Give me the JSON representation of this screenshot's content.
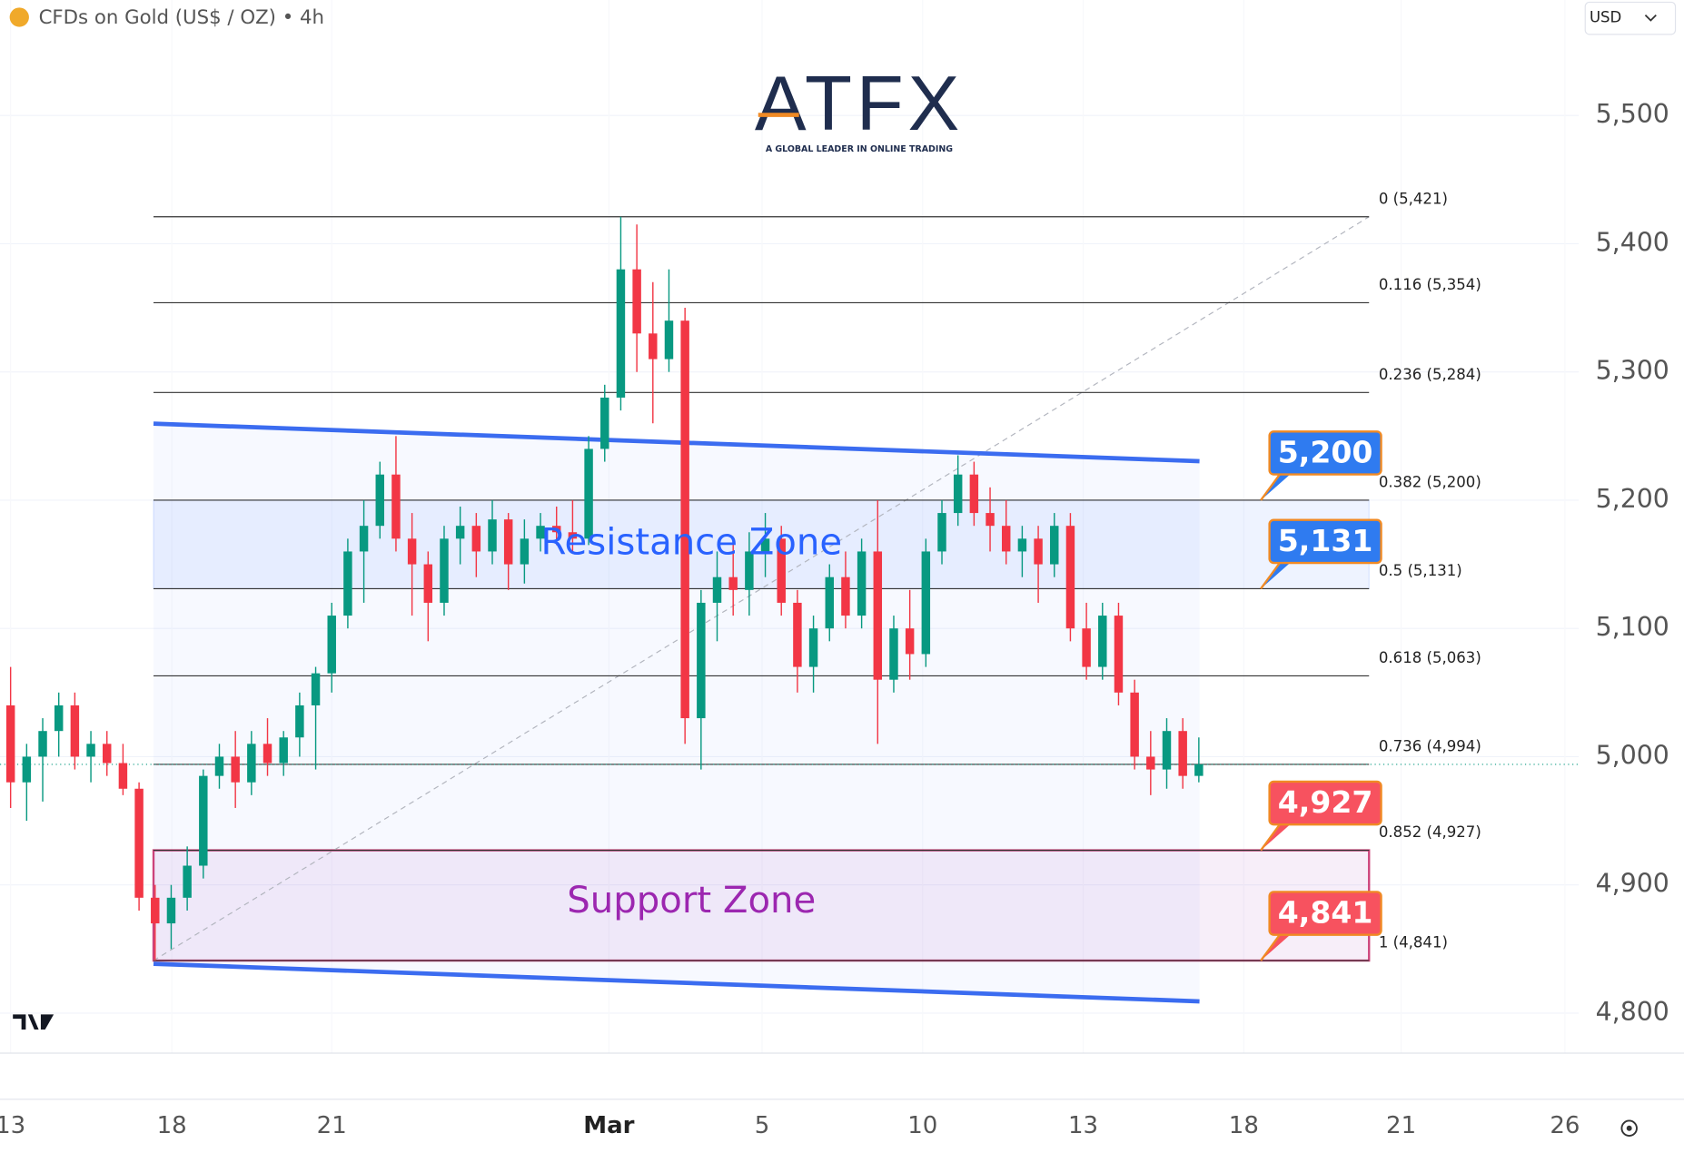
{
  "header": {
    "symbol": "CFDs on Gold (US$ / OZ) • 4h",
    "currency": "USD"
  },
  "logo": {
    "name": "ATFX",
    "tagline": "A GLOBAL LEADER IN ONLINE TRADING"
  },
  "chart_data": {
    "type": "candlestick",
    "up_color": "#089981",
    "down_color": "#f23645",
    "xlim": [
      -0.33,
      48.83
    ],
    "xticks": [
      {
        "value": 0,
        "label": "13"
      },
      {
        "value": 5.02,
        "label": "18"
      },
      {
        "value": 10,
        "label": "21"
      },
      {
        "value": 18.63,
        "label": "Mar"
      },
      {
        "value": 23.4,
        "label": "5"
      },
      {
        "value": 28.4,
        "label": "10"
      },
      {
        "value": 33.4,
        "label": "13"
      },
      {
        "value": 38.4,
        "label": "18"
      },
      {
        "value": 43.3,
        "label": "21"
      },
      {
        "value": 48.4,
        "label": "26"
      }
    ],
    "ylim": [
      4732,
      5590
    ],
    "yticks": [
      {
        "value": 4800,
        "label": "4,800"
      },
      {
        "value": 4900,
        "label": "4,900"
      },
      {
        "value": 5000,
        "label": "5,000"
      },
      {
        "value": 5100,
        "label": "5,100"
      },
      {
        "value": 5200,
        "label": "5,200"
      },
      {
        "value": 5300,
        "label": "5,300"
      },
      {
        "value": 5400,
        "label": "5,400"
      },
      {
        "value": 5500,
        "label": "5,500"
      }
    ],
    "grid": true,
    "x": [
      0,
      0.5,
      1,
      1.5,
      2,
      2.5,
      3,
      3.5,
      4,
      4.5,
      5,
      5.5,
      6,
      6.5,
      7,
      7.5,
      8,
      8.5,
      9,
      9.5,
      10,
      10.5,
      11,
      11.5,
      12,
      12.5,
      13,
      13.5,
      14,
      14.5,
      15,
      15.5,
      16,
      16.5,
      17,
      17.5,
      18,
      18.5,
      19,
      19.5,
      20,
      20.5,
      21,
      21.5,
      22,
      22.5,
      23,
      23.5,
      24,
      24.5,
      25,
      25.5,
      26,
      26.5,
      27,
      27.5,
      28,
      28.5,
      29,
      29.5,
      30,
      30.5,
      31,
      31.5,
      32,
      32.5,
      33,
      33.5,
      34,
      34.5,
      35,
      35.5,
      36,
      36.5,
      37
    ],
    "open": [
      5040,
      4980,
      5000,
      5020,
      5040,
      5000,
      5010,
      4995,
      4975,
      4890,
      4870,
      4890,
      4915,
      4985,
      5000,
      4980,
      5010,
      4995,
      5015,
      5040,
      5065,
      5110,
      5160,
      5180,
      5220,
      5170,
      5150,
      5120,
      5170,
      5180,
      5160,
      5185,
      5150,
      5170,
      5180,
      5175,
      5170,
      5240,
      5280,
      5380,
      5330,
      5310,
      5340,
      5030,
      5120,
      5140,
      5130,
      5160,
      5170,
      5120,
      5070,
      5100,
      5140,
      5110,
      5160,
      5060,
      5100,
      5080,
      5160,
      5190,
      5220,
      5190,
      5180,
      5160,
      5170,
      5150,
      5180,
      5100,
      5070,
      5110,
      5050,
      5000,
      4990,
      5020,
      4985
    ],
    "high": [
      5070,
      5010,
      5030,
      5050,
      5050,
      5020,
      5020,
      5010,
      4980,
      4900,
      4900,
      4930,
      4990,
      5010,
      5020,
      5020,
      5030,
      5020,
      5050,
      5070,
      5120,
      5170,
      5200,
      5230,
      5250,
      5190,
      5160,
      5180,
      5195,
      5190,
      5200,
      5190,
      5185,
      5190,
      5195,
      5200,
      5250,
      5290,
      5421,
      5415,
      5370,
      5380,
      5350,
      5130,
      5160,
      5170,
      5175,
      5190,
      5180,
      5130,
      5110,
      5150,
      5160,
      5170,
      5200,
      5110,
      5130,
      5170,
      5200,
      5235,
      5230,
      5210,
      5200,
      5180,
      5180,
      5190,
      5190,
      5120,
      5120,
      5120,
      5060,
      5020,
      5030,
      5030,
      5015
    ],
    "low": [
      4960,
      4950,
      4965,
      5000,
      4990,
      4980,
      4985,
      4970,
      4880,
      4841,
      4850,
      4880,
      4905,
      4975,
      4960,
      4970,
      4985,
      4985,
      5000,
      4990,
      5050,
      5100,
      5120,
      5170,
      5160,
      5110,
      5090,
      5110,
      5150,
      5140,
      5150,
      5130,
      5135,
      5160,
      5165,
      5160,
      5165,
      5230,
      5270,
      5300,
      5260,
      5300,
      5010,
      4990,
      5090,
      5110,
      5110,
      5140,
      5110,
      5050,
      5050,
      5090,
      5100,
      5100,
      5010,
      5050,
      5060,
      5070,
      5150,
      5180,
      5180,
      5160,
      5150,
      5140,
      5120,
      5140,
      5090,
      5060,
      5060,
      5040,
      4990,
      4970,
      4975,
      4975,
      4980
    ],
    "close": [
      4980,
      5000,
      5020,
      5040,
      5000,
      5010,
      4995,
      4975,
      4890,
      4870,
      4890,
      4915,
      4985,
      5000,
      4980,
      5010,
      4995,
      5015,
      5040,
      5065,
      5110,
      5160,
      5180,
      5220,
      5170,
      5150,
      5120,
      5170,
      5180,
      5160,
      5185,
      5150,
      5170,
      5180,
      5175,
      5170,
      5240,
      5280,
      5380,
      5330,
      5310,
      5340,
      5030,
      5120,
      5140,
      5130,
      5160,
      5170,
      5120,
      5070,
      5100,
      5140,
      5110,
      5160,
      5060,
      5100,
      5080,
      5160,
      5190,
      5220,
      5190,
      5180,
      5160,
      5170,
      5150,
      5180,
      5100,
      5070,
      5110,
      5050,
      5000,
      4990,
      5020,
      4985,
      4994
    ],
    "last_price": 4994,
    "fib_x": [
      4.45,
      42.3
    ],
    "fib_levels": [
      {
        "label": "0 (5,421)",
        "value": 5421
      },
      {
        "label": "0.116 (5,354)",
        "value": 5354
      },
      {
        "label": "0.236 (5,284)",
        "value": 5284
      },
      {
        "label": "0.382 (5,200)",
        "value": 5200
      },
      {
        "label": "0.5 (5,131)",
        "value": 5131
      },
      {
        "label": "0.618 (5,063)",
        "value": 5063
      },
      {
        "label": "0.736 (4,994)",
        "value": 4994
      },
      {
        "label": "0.852 (4,927)",
        "value": 4927
      },
      {
        "label": "1 (4,841)",
        "value": 4841
      }
    ],
    "channel": [
      {
        "x": [
          4.45,
          37.02
        ],
        "y": [
          5259.7,
          5230.4
        ]
      },
      {
        "x": [
          4.45,
          37.02
        ],
        "y": [
          4838.5,
          4809.2
        ]
      }
    ],
    "zones": [
      {
        "label": "Resistance Zone",
        "range": [
          5131,
          5200
        ],
        "x": [
          4.45,
          42.3
        ],
        "color": "#2962ff"
      },
      {
        "label": "Support Zone",
        "range": [
          4841,
          4927
        ],
        "x": [
          4.45,
          42.3
        ],
        "color": "#9c27b0"
      }
    ],
    "price_labels": [
      {
        "value": 5200,
        "label": "5,200",
        "color": "#2f7bf0"
      },
      {
        "value": 5131,
        "label": "5,131",
        "color": "#2f7bf0"
      },
      {
        "value": 4927,
        "label": "4,927",
        "color": "#f7525f"
      },
      {
        "value": 4841,
        "label": "4,841",
        "color": "#f7525f"
      }
    ]
  }
}
